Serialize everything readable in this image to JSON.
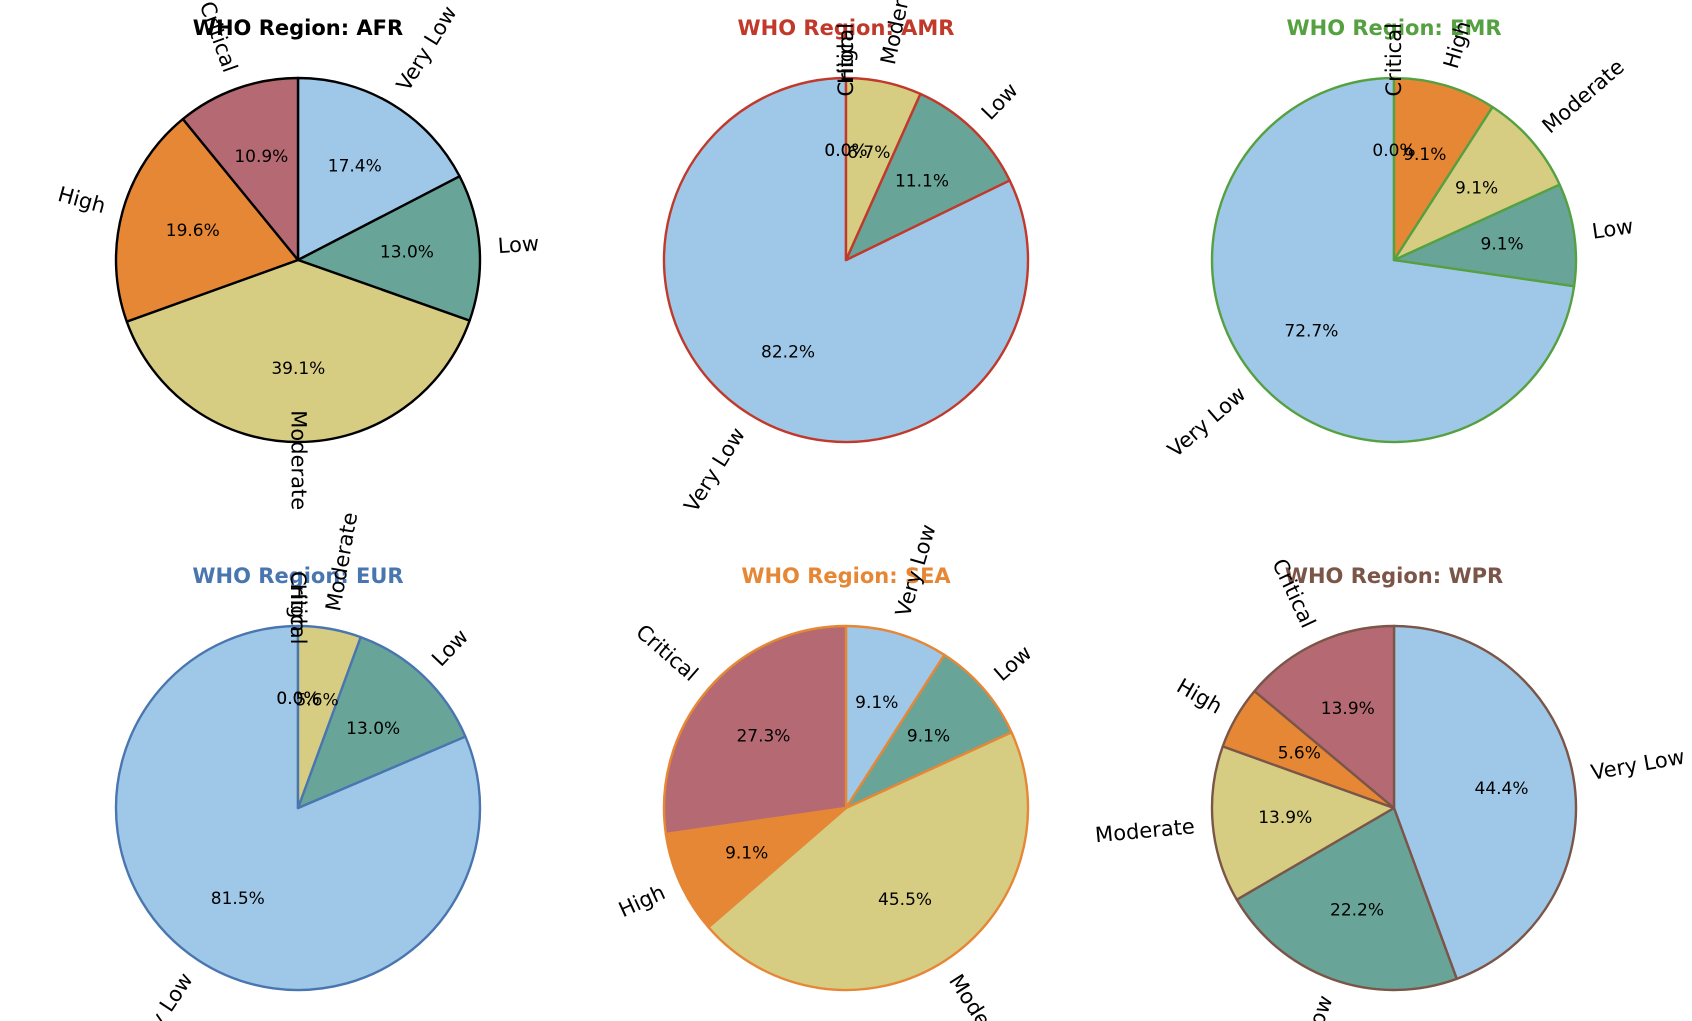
{
  "figure_title": "",
  "colors": {
    "Very Low": "#9fc8e8",
    "Low": "#68a598",
    "Moderate": "#d6cd82",
    "High": "#e68735",
    "Critical": "#b56a73"
  },
  "chart_data": [
    {
      "type": "pie",
      "title": "WHO Region: AFR",
      "title_color": "#000000",
      "edge_color": "#000000",
      "categories": [
        "Very Low",
        "Low",
        "Moderate",
        "High",
        "Critical"
      ],
      "values": [
        17.4,
        13.0,
        39.1,
        19.6,
        10.9
      ],
      "percent_labels": [
        "17.4%",
        "13.0%",
        "39.1%",
        "19.6%",
        "10.9%"
      ],
      "start_angle_deg": 90,
      "direction": "clockwise"
    },
    {
      "type": "pie",
      "title": "WHO Region: AMR",
      "title_color": "#c0392b",
      "edge_color": "#c0392b",
      "categories": [
        "Very Low",
        "Low",
        "Moderate",
        "High",
        "Critical"
      ],
      "values": [
        82.2,
        11.1,
        6.7,
        0.0,
        0.0
      ],
      "percent_labels": [
        "82.2%",
        "11.1%",
        "6.7%",
        "0.0%",
        "0.0%"
      ],
      "start_angle_deg": 90,
      "direction": "counterclockwise"
    },
    {
      "type": "pie",
      "title": "WHO Region: EMR",
      "title_color": "#55a040",
      "edge_color": "#55a040",
      "categories": [
        "Very Low",
        "Low",
        "Moderate",
        "High",
        "Critical"
      ],
      "values": [
        72.7,
        9.1,
        9.1,
        9.1,
        0.0
      ],
      "percent_labels": [
        "72.7%",
        "9.1%",
        "9.1%",
        "9.1%",
        "0.0%"
      ],
      "start_angle_deg": 90,
      "direction": "counterclockwise"
    },
    {
      "type": "pie",
      "title": "WHO Region: EUR",
      "title_color": "#4a76b0",
      "edge_color": "#4a76b0",
      "categories": [
        "Very Low",
        "Low",
        "Moderate",
        "High",
        "Critical"
      ],
      "values": [
        81.5,
        13.0,
        5.6,
        0.0,
        0.0
      ],
      "percent_labels": [
        "81.5%",
        "13.0%",
        "5.6%",
        "0.0%",
        "0.0%"
      ],
      "start_angle_deg": 90,
      "direction": "counterclockwise"
    },
    {
      "type": "pie",
      "title": "WHO Region: SEA",
      "title_color": "#e68735",
      "edge_color": "#e68735",
      "categories": [
        "Very Low",
        "Low",
        "Moderate",
        "High",
        "Critical"
      ],
      "values": [
        9.1,
        9.1,
        45.5,
        9.1,
        27.3
      ],
      "percent_labels": [
        "9.1%",
        "9.1%",
        "45.5%",
        "9.1%",
        "27.3%"
      ],
      "start_angle_deg": 90,
      "direction": "clockwise"
    },
    {
      "type": "pie",
      "title": "WHO Region: WPR",
      "title_color": "#7a5548",
      "edge_color": "#7a5548",
      "categories": [
        "Very Low",
        "Low",
        "Moderate",
        "High",
        "Critical"
      ],
      "values": [
        44.4,
        22.2,
        13.9,
        5.6,
        13.9
      ],
      "percent_labels": [
        "44.4%",
        "22.2%",
        "13.9%",
        "5.6%",
        "13.9%"
      ],
      "start_angle_deg": 90,
      "direction": "clockwise"
    }
  ]
}
